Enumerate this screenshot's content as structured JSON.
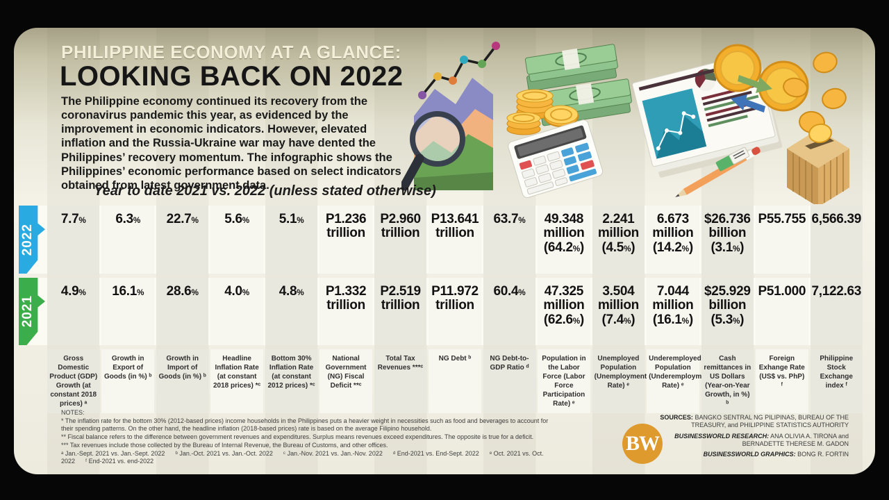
{
  "header": {
    "kicker": "PHILIPPINE ECONOMY AT A GLANCE:",
    "title": "LOOKING BACK ON 2022",
    "intro": "The Philippine economy continued its recovery from the coronavirus pandemic this year, as evidenced by the improvement in economic indicators. However, elevated inflation and the Russia-Ukraine war may have dented the Philippines’ recovery momentum. The infographic shows the Philippines’ economic performance based on select indicators obtained from latest government data.",
    "subtitle": "Year to date 2021 vs. 2022 (unless stated otherwise)"
  },
  "table": {
    "row_labels": {
      "y2022": "2022",
      "y2021": "2021"
    },
    "row_colors": {
      "y2022": "#29ABE2",
      "y2021": "#3BAD4A"
    },
    "columns": [
      {
        "label": "Gross Domestic Product (GDP) Growth (at constant 2018 prices) ᵃ",
        "v2022": "7.7%",
        "v2021": "4.9%"
      },
      {
        "label": "Growth in Export of Goods (in %) ᵇ",
        "v2022": "6.3%",
        "v2021": "16.1%"
      },
      {
        "label": "Growth in Import of Goods (in %) ᵇ",
        "v2022": "22.7%",
        "v2021": "28.6%"
      },
      {
        "label": "Headline Inflation Rate (at constant 2018 prices) *ᶜ",
        "v2022": "5.6%",
        "v2021": "4.0%"
      },
      {
        "label": "Bottom 30% Inflation Rate (at constant 2012 prices) *ᶜ",
        "v2022": "5.1%",
        "v2021": "4.8%"
      },
      {
        "label": "National Government (NG) Fiscal Deficit **ᶜ",
        "v2022": "P1.236 trillion",
        "v2021": "P1.332 trillion"
      },
      {
        "label": "Total Tax Revenues ***ᶜ",
        "v2022": "P2.960 trillion",
        "v2021": "P2.519 trillion"
      },
      {
        "label": "NG Debt ᵇ",
        "v2022": "P13.641 trillion",
        "v2021": "P11.972 trillion"
      },
      {
        "label": "NG Debt-to-GDP Ratio ᵈ",
        "v2022": "63.7%",
        "v2021": "60.4%"
      },
      {
        "label": "Population in the Labor Force (Labor Force Participation Rate) ᵉ",
        "v2022": "49.348 million (64.2%)",
        "v2021": "47.325 million (62.6%)"
      },
      {
        "label": "Unemployed Population (Unemployment Rate) ᵉ",
        "v2022": "2.241 million (4.5%)",
        "v2021": "3.504 million (7.4%)"
      },
      {
        "label": "Underemployed Population (Underemployment Rate) ᵉ",
        "v2022": "6.673 million (14.2%)",
        "v2021": "7.044 million (16.1%)"
      },
      {
        "label": "Cash remittances in US Dollars (Year-on-Year Growth, in %) ᵇ",
        "v2022": "$26.736 billion (3.1%)",
        "v2021": "$25.929 billion (5.3%)"
      },
      {
        "label": "Foreign Exhange Rate (US$ vs. PhP) ᶠ",
        "v2022": "P55.755",
        "v2021": "P51.000"
      },
      {
        "label": "Philippine Stock Exchange index ᶠ",
        "v2022": "6,566.39",
        "v2021": "7,122.63"
      }
    ]
  },
  "notes": {
    "heading": "NOTES:",
    "lines": [
      "* The inflation rate for the bottom 30% (2012-based prices) income households in the Philippines puts a heavier weight in necessities such as food and beverages to account for their spending patterns. On the other hand, the headline inflation (2018-based prices) rate is based on the average Filipino household.",
      "** Fiscal balance refers to the difference between government revenues and expenditures. Surplus means revenues exceed expenditures. The opposite is true for a deficit.",
      "*** Tax revenues include those collected by the Bureau of Internal Revenue, the Bureau of Customs, and other offices.",
      "ᵃ Jan.-Sept. 2021 vs. Jan.-Sept. 2022      ᵇ Jan.-Oct. 2021 vs. Jan.-Oct. 2022      ᶜ Jan.-Nov. 2021 vs. Jan.-Nov. 2022      ᵈ End-2021 vs. End-Sept. 2022      ᵉ Oct. 2021 vs. Oct. 2022      ᶠ End-2021 vs. end-2022"
    ]
  },
  "credits": {
    "items": [
      {
        "label": "SOURCES:",
        "text": "BANGKO SENTRAL NG PILIPINAS, BUREAU OF THE TREASURY, and PHILIPPINE STATISTICS AUTHORITY"
      },
      {
        "label": "BUSINESSWORLD RESEARCH:",
        "text": "ANA OLIVIA A. TIRONA and BERNADETTE THERESE M. GADON"
      },
      {
        "label": "BUSINESSWORLD GRAPHICS:",
        "text": "BONG R. FORTIN"
      }
    ]
  },
  "logo": {
    "text": "BW",
    "color": "#DE9A2D"
  },
  "illustrations": [
    "area-chart-magnifier-illustration",
    "money-bundles-illustration",
    "coin-stacks-illustration",
    "calculator-illustration",
    "report-papers-illustration",
    "pencil-eraser-illustration",
    "currency-exchange-coins-illustration",
    "coin-crate-illustration"
  ]
}
